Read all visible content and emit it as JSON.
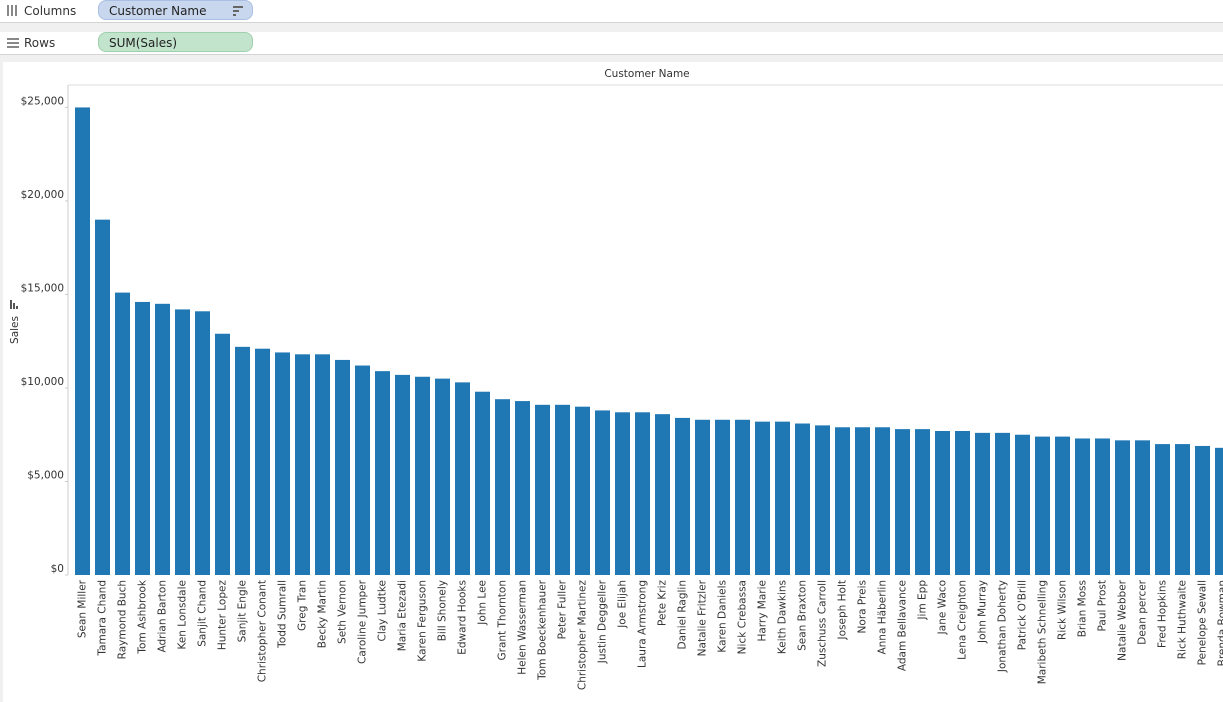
{
  "shelves": {
    "columns": {
      "label": "Columns",
      "pill": "Customer Name"
    },
    "rows": {
      "label": "Rows",
      "pill": "SUM(Sales)"
    }
  },
  "chart_data": {
    "type": "bar",
    "header": "Customer Name",
    "y_label": "Sales",
    "color": "#1f77b4",
    "grid": false,
    "categories": [
      "Sean Miller",
      "Tamara Chand",
      "Raymond Buch",
      "Tom Ashbrook",
      "Adrian Barton",
      "Ken Lonsdale",
      "Sanjit Chand",
      "Hunter Lopez",
      "Sanjit Engle",
      "Christopher Conant",
      "Todd Sumrall",
      "Greg Tran",
      "Becky Martin",
      "Seth Vernon",
      "Caroline Jumper",
      "Clay Ludtke",
      "Maria Etezadi",
      "Karen Ferguson",
      "Bill Shonely",
      "Edward Hooks",
      "John Lee",
      "Grant Thornton",
      "Helen Wasserman",
      "Tom Boeckenhauer",
      "Peter Fuller",
      "Christopher Martinez",
      "Justin Deggeller",
      "Joe Elijah",
      "Laura Armstrong",
      "Pete Kriz",
      "Daniel Raglin",
      "Natalie Fritzler",
      "Karen Daniels",
      "Nick Crebassa",
      "Harry Marie",
      "Keith Dawkins",
      "Sean Braxton",
      "Zuschuss Carroll",
      "Joseph Holt",
      "Nora Preis",
      "Anna Häberlin",
      "Adam Bellavance",
      "Jim Epp",
      "Jane Waco",
      "Lena Creighton",
      "John Murray",
      "Jonathan Doherty",
      "Patrick O'Brill",
      "Maribeth Schnelling",
      "Rick Wilson",
      "Brian Moss",
      "Paul Prost",
      "Natalie Webber",
      "Dean percer",
      "Fred Hopkins",
      "Rick Huthwaite",
      "Penelope Sewall",
      "Brenda Bowman"
    ],
    "values": [
      25000,
      19000,
      15100,
      14600,
      14500,
      14200,
      14100,
      12900,
      12200,
      12100,
      11900,
      11800,
      11800,
      11500,
      11200,
      10900,
      10700,
      10600,
      10500,
      10300,
      9800,
      9400,
      9300,
      9100,
      9100,
      9000,
      8800,
      8700,
      8700,
      8600,
      8400,
      8300,
      8300,
      8300,
      8200,
      8200,
      8100,
      8000,
      7900,
      7900,
      7900,
      7800,
      7800,
      7700,
      7700,
      7600,
      7600,
      7500,
      7400,
      7400,
      7300,
      7300,
      7200,
      7200,
      7000,
      7000,
      6900,
      6800
    ],
    "ylim": [
      0,
      26200
    ],
    "yticks": [
      {
        "value": 0,
        "label": "$0"
      },
      {
        "value": 5000,
        "label": "$5,000"
      },
      {
        "value": 10000,
        "label": "$10,000"
      },
      {
        "value": 15000,
        "label": "$15,000"
      },
      {
        "value": 20000,
        "label": "$20,000"
      },
      {
        "value": 25000,
        "label": "$25,000"
      }
    ]
  }
}
